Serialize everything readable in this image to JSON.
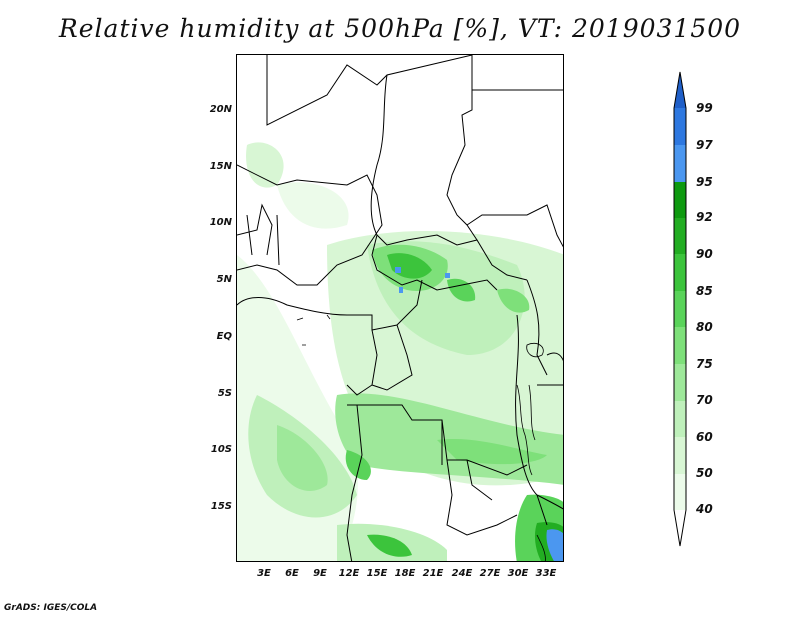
{
  "title": "Relative humidity at 500hPa [%], VT: 2019031500",
  "credit": "GrADS: IGES/COLA",
  "map": {
    "lat_labels": [
      "20N",
      "15N",
      "10N",
      "5N",
      "EQ",
      "5S",
      "10S",
      "15S"
    ],
    "lon_labels": [
      "3E",
      "6E",
      "9E",
      "12E",
      "15E",
      "18E",
      "21E",
      "24E",
      "27E",
      "30E",
      "33E"
    ],
    "lat_range": [
      -20,
      24
    ],
    "lon_range": [
      0,
      35
    ]
  },
  "colorbar": {
    "levels": [
      "99",
      "97",
      "95",
      "92",
      "90",
      "85",
      "80",
      "75",
      "70",
      "60",
      "50",
      "40"
    ],
    "colors": {
      "above_99": "#1f5fc8",
      "97_99": "#2e78e0",
      "95_97": "#4b97f0",
      "92_95": "#0e9a10",
      "90_92": "#22ad22",
      "85_90": "#3cc43c",
      "80_85": "#5ad35a",
      "75_80": "#7ee07a",
      "70_75": "#9ee89a",
      "60_70": "#bff0bb",
      "50_60": "#d8f6d4",
      "40_50": "#ecfbea",
      "below_40": "#ffffff"
    }
  }
}
